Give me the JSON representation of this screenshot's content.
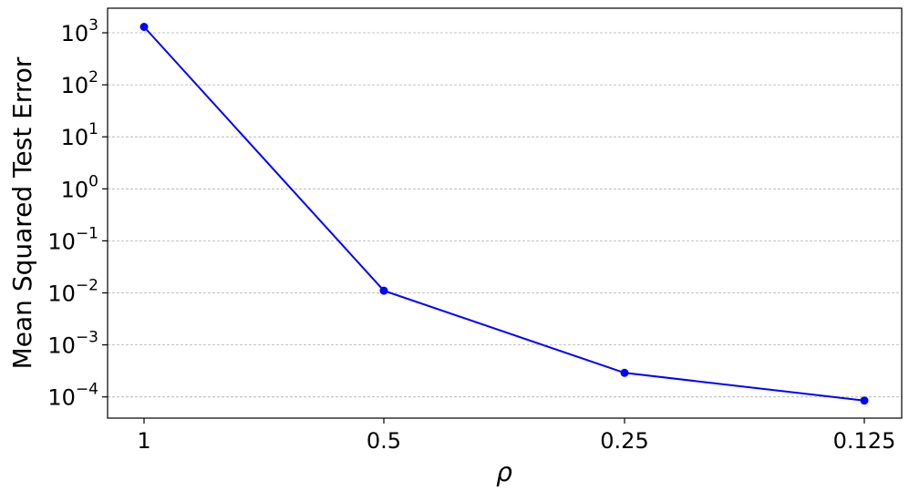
{
  "chart_data": {
    "type": "line",
    "xlabel": "ρ",
    "ylabel": "Mean Squared Test Error",
    "y_scale": "log",
    "grid": "horizontal dashed",
    "legend": "none",
    "categories": [
      "1",
      "0.5",
      "0.25",
      "0.125"
    ],
    "series": [
      {
        "color": "#0000ff",
        "marker": "circle",
        "x": [
          "1",
          "0.5",
          "0.25",
          "0.125"
        ],
        "y": [
          1300,
          0.011,
          0.00029,
          8.5e-05
        ]
      }
    ],
    "y_ticks": [
      {
        "mantissa": "10",
        "exponent": "−4",
        "value": 0.0001
      },
      {
        "mantissa": "10",
        "exponent": "−3",
        "value": 0.001
      },
      {
        "mantissa": "10",
        "exponent": "−2",
        "value": 0.01
      },
      {
        "mantissa": "10",
        "exponent": "−1",
        "value": 0.1
      },
      {
        "mantissa": "10",
        "exponent": "0",
        "value": 1
      },
      {
        "mantissa": "10",
        "exponent": "1",
        "value": 10
      },
      {
        "mantissa": "10",
        "exponent": "2",
        "value": 100
      },
      {
        "mantissa": "10",
        "exponent": "3",
        "value": 1000
      }
    ],
    "ylim": [
      4e-05,
      3000
    ]
  }
}
